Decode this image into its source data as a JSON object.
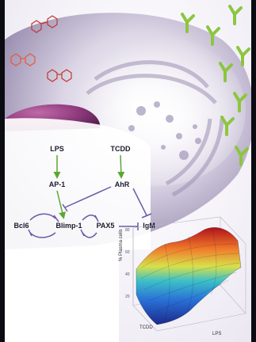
{
  "nodes": {
    "lps": "LPS",
    "tcdd": "TCDD",
    "ap1": "AP-1",
    "ahr": "AhR",
    "bcl6": "Bcl6",
    "blimp1": "Blimp-1",
    "pax5": "PAX5",
    "igm": "IgM"
  },
  "plot": {
    "z_label": "% Plasma cells",
    "x_label": "TCDD",
    "y_label": "LPS"
  },
  "colors": {
    "activation_arrow": "#5aa832",
    "inhibition_arrow": "#6a5aa8",
    "antibody": "#8cc63f",
    "nucleus": "#7c2a6c"
  },
  "icons": [
    "dioxin-molecule-icon",
    "antibody-icon",
    "surface-plot"
  ]
}
